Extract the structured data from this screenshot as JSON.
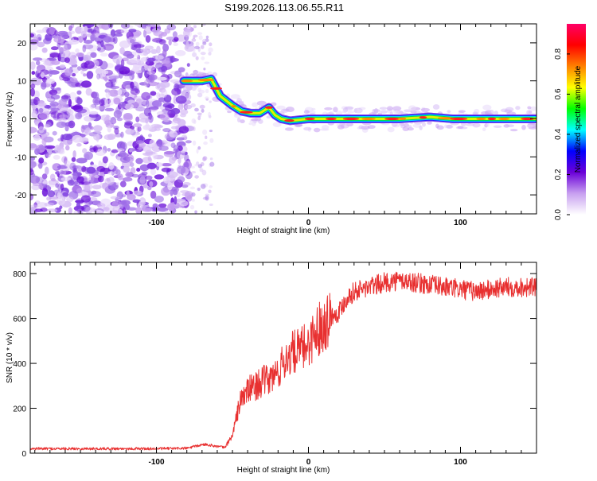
{
  "title": "S199.2026.113.06.55.R11",
  "chart_data": [
    {
      "type": "heatmap",
      "title": "S199.2026.113.06.55.R11",
      "xlabel": "Height of straight line (km)",
      "ylabel": "Frequency (Hz)",
      "xlim": [
        -183,
        150
      ],
      "ylim": [
        -25,
        25
      ],
      "x_ticks": [
        -100,
        0,
        100
      ],
      "x_tick_labels": [
        "-100",
        "0",
        "100"
      ],
      "y_ticks": [
        -20,
        -10,
        0,
        10,
        20
      ],
      "y_tick_labels": [
        "-20",
        "-10",
        "0",
        "10",
        "20"
      ],
      "noise_region_x": [
        -183,
        -78
      ],
      "ridge": {
        "x": [
          -82,
          -70,
          -64,
          -58,
          -50,
          -44,
          -38,
          -32,
          -26,
          -22,
          -18,
          -12,
          0,
          20,
          40,
          60,
          80,
          95,
          110,
          130,
          150
        ],
        "freq_hz": [
          10,
          10,
          10.5,
          6,
          3.5,
          2,
          1.5,
          1.5,
          3,
          1,
          0,
          -0.5,
          0,
          0,
          0,
          0,
          0.5,
          0,
          0,
          0,
          0
        ]
      },
      "colorbar": {
        "label": "Normalized spectral amplitude",
        "range": [
          0,
          0.95
        ],
        "ticks": [
          0.0,
          0.2,
          0.4,
          0.6,
          0.8
        ],
        "tick_labels": [
          "0.0",
          "0.2",
          "0.4",
          "0.6",
          "0.8"
        ],
        "colors": [
          "#ffffff",
          "#c8a0f0",
          "#6a00d8",
          "#0000ff",
          "#00ffff",
          "#00ff00",
          "#ffff00",
          "#ff8000",
          "#ff0000",
          "#ff0066"
        ]
      }
    },
    {
      "type": "line",
      "xlabel": "Height of straight line (km)",
      "ylabel": "SNR (10 * v/v)",
      "xlim": [
        -183,
        150
      ],
      "ylim": [
        0,
        850
      ],
      "x_ticks": [
        -100,
        0,
        100
      ],
      "x_tick_labels": [
        "-100",
        "0",
        "100"
      ],
      "y_ticks": [
        0,
        200,
        400,
        600,
        800
      ],
      "y_tick_labels": [
        "0",
        "200",
        "400",
        "600",
        "800"
      ],
      "color": "#e83030",
      "series": [
        {
          "name": "SNR",
          "x": [
            -183,
            -150,
            -120,
            -100,
            -80,
            -68,
            -60,
            -55,
            -50,
            -45,
            -40,
            -35,
            -30,
            -25,
            -20,
            -15,
            -10,
            -5,
            0,
            5,
            10,
            15,
            20,
            25,
            30,
            40,
            50,
            60,
            70,
            80,
            90,
            100,
            110,
            120,
            130,
            140,
            150
          ],
          "y": [
            20,
            20,
            20,
            20,
            22,
            40,
            30,
            25,
            80,
            230,
            280,
            300,
            320,
            330,
            360,
            420,
            450,
            460,
            490,
            540,
            580,
            610,
            630,
            690,
            720,
            740,
            760,
            770,
            760,
            750,
            740,
            730,
            720,
            730,
            740,
            740,
            740
          ]
        }
      ]
    }
  ]
}
